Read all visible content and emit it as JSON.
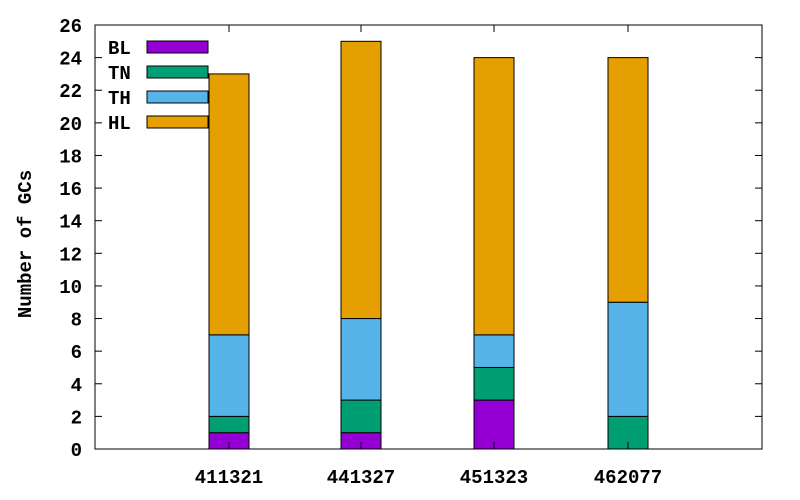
{
  "chart_data": {
    "type": "bar",
    "stacked": true,
    "title": "",
    "xlabel": "",
    "ylabel": "Number of GCs",
    "ylim": [
      0,
      26
    ],
    "yticks": [
      0,
      2,
      4,
      6,
      8,
      10,
      12,
      14,
      16,
      18,
      20,
      22,
      24,
      26
    ],
    "ytick_labels": [
      "0",
      "2",
      "4",
      "6",
      "8",
      "10",
      "12",
      "14",
      "16",
      "18",
      "20",
      "22",
      "24",
      "26"
    ],
    "grid": false,
    "legend_position": "top-left",
    "categories": [
      "411321",
      "441327",
      "451323",
      "462077"
    ],
    "series": [
      {
        "name": "BL",
        "color": "#9400d3",
        "values": [
          1,
          1,
          3,
          0
        ]
      },
      {
        "name": "TN",
        "color": "#009e73",
        "values": [
          1,
          2,
          2,
          2
        ]
      },
      {
        "name": "TH",
        "color": "#56b4e9",
        "values": [
          5,
          5,
          2,
          7
        ]
      },
      {
        "name": "HL",
        "color": "#e69f00",
        "values": [
          16,
          17,
          17,
          15
        ]
      }
    ]
  }
}
